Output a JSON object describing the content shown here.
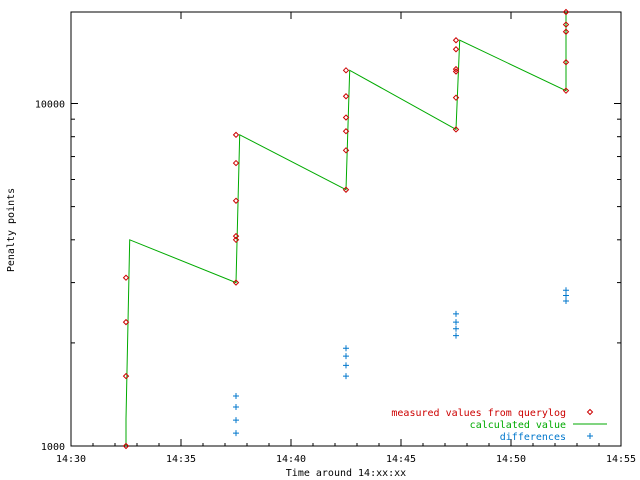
{
  "chart_data": {
    "type": "line",
    "title": "",
    "xlabel": "Time around 14:xx:xx",
    "ylabel": "Penalty points",
    "y_scale": "log",
    "ylim": [
      1000,
      18500
    ],
    "xlim": [
      "14:30",
      "14:55"
    ],
    "x_ticks": [
      "14:30",
      "14:35",
      "14:40",
      "14:45",
      "14:50",
      "14:55"
    ],
    "y_ticks": [
      {
        "value": 1000,
        "label": "1000"
      },
      {
        "value": 10000,
        "label": "10000"
      }
    ],
    "grid": false,
    "legend_position": "bottom-right",
    "series": [
      {
        "name": "measured values from querylog",
        "kind": "points",
        "marker": "diamond",
        "color": "#cc0000",
        "x": [
          "14:32:30",
          "14:32:30",
          "14:32:30",
          "14:32:30",
          "14:37:30",
          "14:37:30",
          "14:37:30",
          "14:37:30",
          "14:37:30",
          "14:37:30",
          "14:42:30",
          "14:42:30",
          "14:42:30",
          "14:42:30",
          "14:42:30",
          "14:42:30",
          "14:47:30",
          "14:47:30",
          "14:47:30",
          "14:47:30",
          "14:47:30",
          "14:47:30",
          "14:52:30",
          "14:52:30",
          "14:52:30",
          "14:52:30",
          "14:52:30"
        ],
        "y": [
          1000,
          1600,
          2300,
          3100,
          3000,
          4000,
          4100,
          5200,
          6700,
          8100,
          5600,
          7300,
          8300,
          9100,
          10500,
          12500,
          8400,
          10400,
          12400,
          12600,
          14400,
          15300,
          10900,
          13200,
          16200,
          17000,
          18500
        ]
      },
      {
        "name": "calculated value",
        "kind": "line",
        "color": "#00aa00",
        "x": [
          "14:32:30",
          "14:32:30",
          "14:32:40",
          "14:37:30",
          "14:37:30",
          "14:37:40",
          "14:42:30",
          "14:42:30",
          "14:42:40",
          "14:47:30",
          "14:47:30",
          "14:47:40",
          "14:52:30",
          "14:52:30"
        ],
        "y": [
          1000,
          1200,
          4000,
          3000,
          3000,
          8100,
          5600,
          5600,
          12500,
          8400,
          8400,
          15300,
          10900,
          18500
        ]
      },
      {
        "name": "differences",
        "kind": "points",
        "marker": "plus",
        "color": "#0077cc",
        "x": [
          "14:37:30",
          "14:37:30",
          "14:37:30",
          "14:37:30",
          "14:42:30",
          "14:42:30",
          "14:42:30",
          "14:42:30",
          "14:47:30",
          "14:47:30",
          "14:47:30",
          "14:47:30",
          "14:52:30",
          "14:52:30",
          "14:52:30"
        ],
        "y": [
          1090,
          1190,
          1300,
          1400,
          1600,
          1720,
          1830,
          1930,
          2100,
          2200,
          2300,
          2430,
          2650,
          2750,
          2850
        ]
      }
    ]
  }
}
